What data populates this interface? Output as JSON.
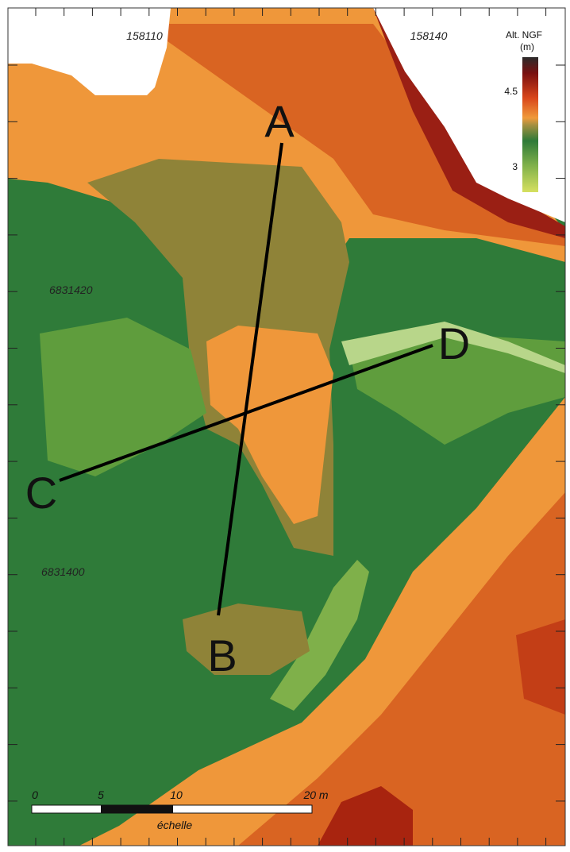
{
  "map": {
    "grid_labels": {
      "x": [
        "158110",
        "158140"
      ],
      "y": [
        "6831420",
        "6831400"
      ]
    },
    "legend": {
      "title": "Alt. NGF",
      "unit": "(m)",
      "labels": [
        "4.5",
        "3"
      ]
    },
    "sections": [
      "A",
      "B",
      "C",
      "D"
    ],
    "scale": {
      "labels": [
        "0",
        "5",
        "10",
        "20 m"
      ],
      "caption": "échelle"
    }
  }
}
